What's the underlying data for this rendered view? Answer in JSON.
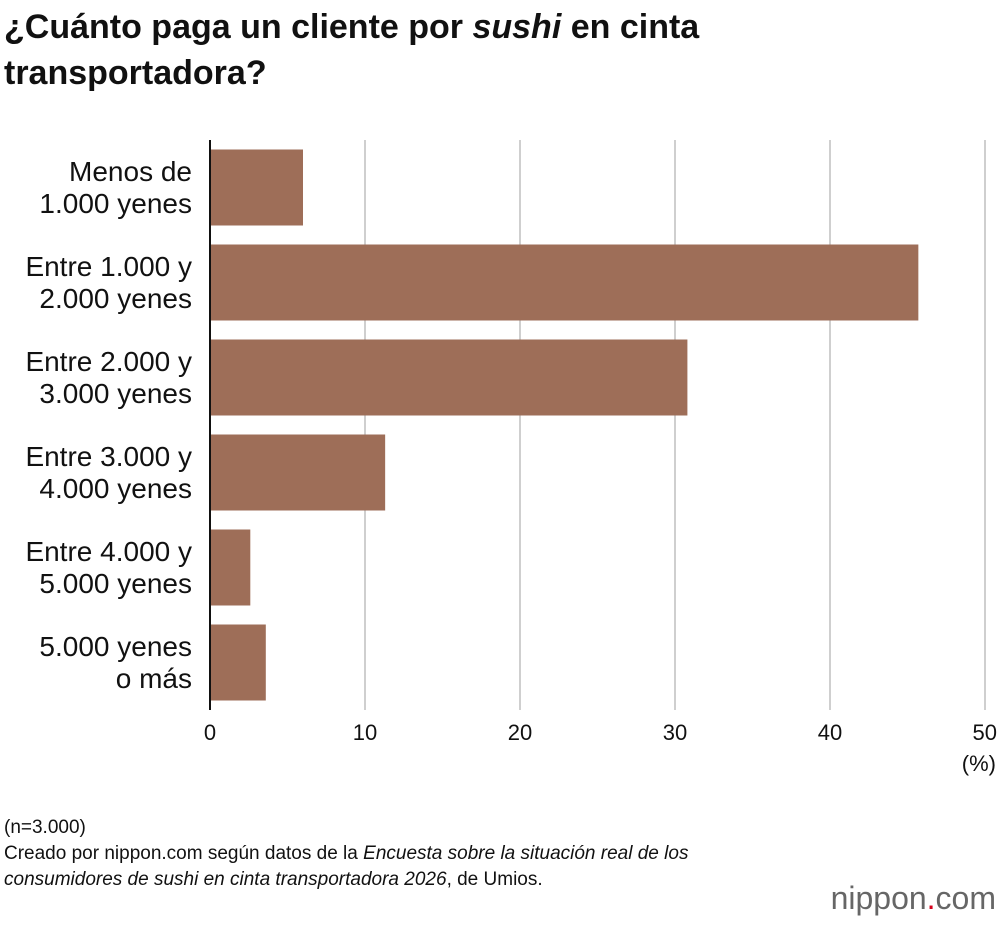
{
  "chart_data": {
    "type": "bar",
    "orientation": "horizontal",
    "title_parts": [
      "¿Cuánto paga un cliente por ",
      "sushi",
      " en cinta transportadora?"
    ],
    "categories": [
      "Menos de\n1.000 yenes",
      "Entre 1.000 y\n2.000 yenes",
      "Entre 2.000 y\n3.000 yenes",
      "Entre 3.000 y\n4.000 yenes",
      "Entre 4.000 y\n5.000 yenes",
      "5.000 yenes\no más"
    ],
    "values": [
      6.0,
      45.7,
      30.8,
      11.3,
      2.6,
      3.6
    ],
    "color": "#9e6e58",
    "xlim": [
      0,
      50
    ],
    "xticks": [
      0,
      10,
      20,
      30,
      40,
      50
    ],
    "grid": true,
    "unit_label": "(%)",
    "note": "(n=3.000)",
    "source_parts": [
      "Creado por nippon.com según datos de la ",
      "Encuesta sobre la situación real de los consumidores de sushi en cinta transportadora 2026",
      ", de Umios."
    ],
    "logo_parts": [
      "nippon",
      ".",
      "com"
    ]
  }
}
